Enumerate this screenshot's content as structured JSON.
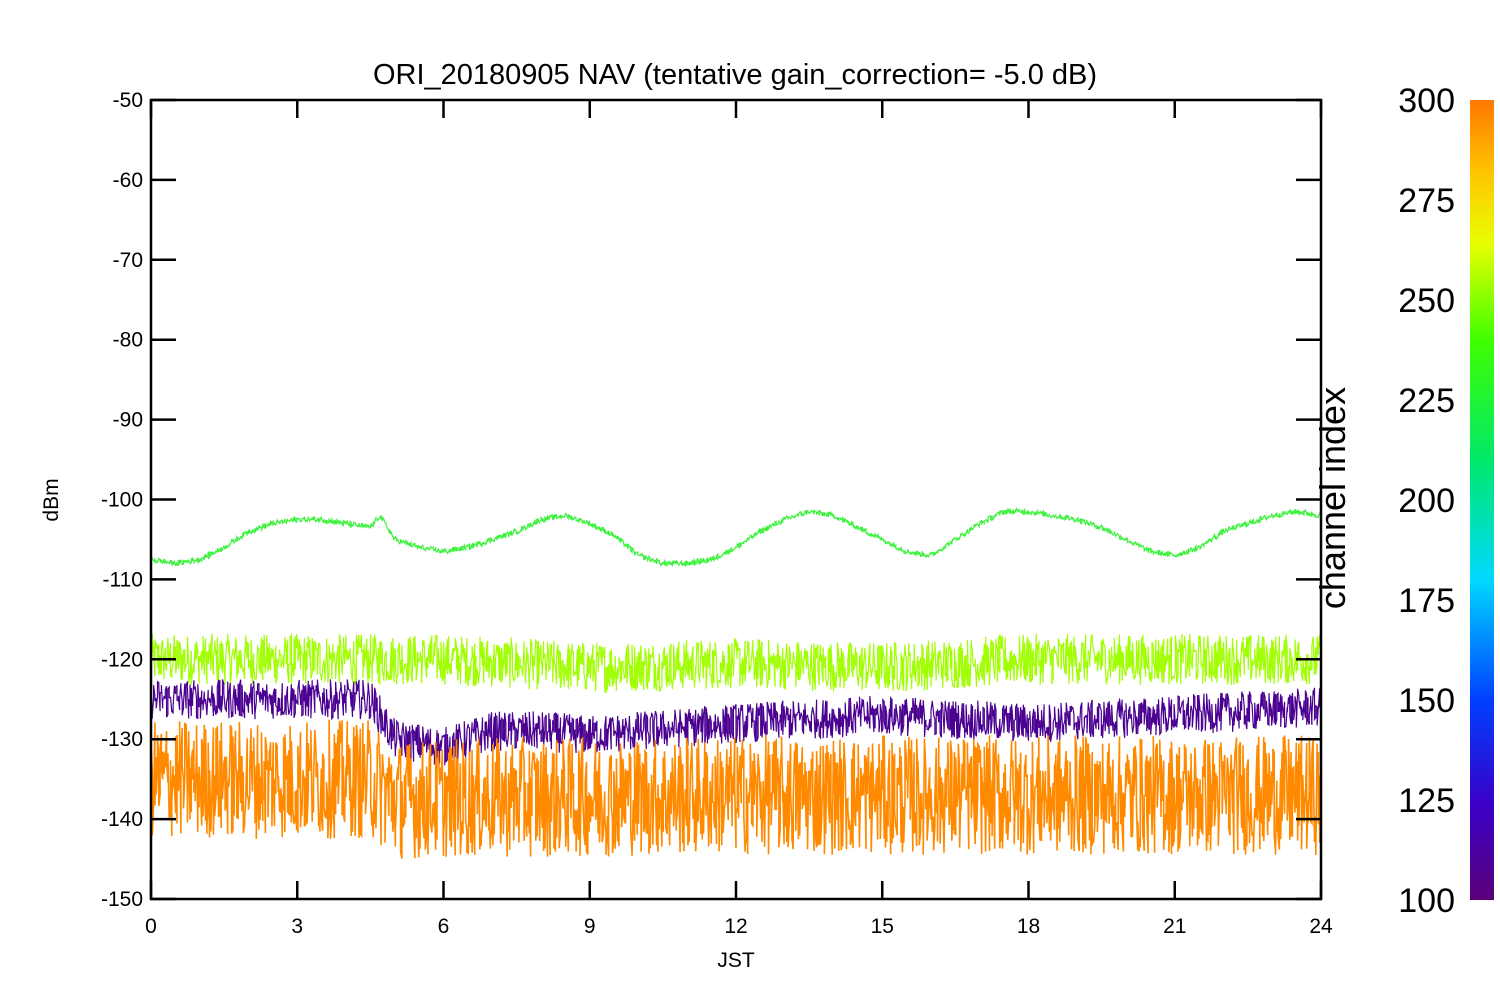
{
  "chart_data": {
    "type": "line",
    "title": "ORI_20180905 NAV (tentative gain_correction= -5.0 dB)",
    "xlabel": "JST",
    "ylabel": "dBm",
    "xlim": [
      0,
      24
    ],
    "ylim": [
      -150,
      -50
    ],
    "x_ticks": [
      "0",
      "3",
      "6",
      "9",
      "12",
      "15",
      "18",
      "21",
      "24"
    ],
    "y_ticks": [
      "-50",
      "-60",
      "-70",
      "-80",
      "-90",
      "-100",
      "-110",
      "-120",
      "-130",
      "-140",
      "-150"
    ],
    "grid": false,
    "colorbar": {
      "label": "channel index",
      "range": [
        100,
        300
      ],
      "ticks": [
        "300",
        "275",
        "250",
        "225",
        "200",
        "175",
        "150",
        "125",
        "100"
      ],
      "colormap": [
        "#5a0078",
        "#3a00c8",
        "#0040ff",
        "#00d8ff",
        "#00e86a",
        "#40ff00",
        "#e8ff00",
        "#ffc400",
        "#ff7800"
      ]
    },
    "series": [
      {
        "channel": 245,
        "color": "#3cf23c",
        "points": [
          [
            0,
            -107.5
          ],
          [
            0.5,
            -108
          ],
          [
            1,
            -107.5
          ],
          [
            1.5,
            -106
          ],
          [
            2,
            -104
          ],
          [
            2.5,
            -103
          ],
          [
            3,
            -102.5
          ],
          [
            3.5,
            -102.5
          ],
          [
            4,
            -103
          ],
          [
            4.5,
            -103.5
          ],
          [
            4.7,
            -102
          ],
          [
            5,
            -105
          ],
          [
            5.5,
            -106
          ],
          [
            6,
            -106.5
          ],
          [
            6.5,
            -106
          ],
          [
            7,
            -105
          ],
          [
            7.5,
            -104
          ],
          [
            8,
            -102.5
          ],
          [
            8.5,
            -102
          ],
          [
            9,
            -103
          ],
          [
            9.5,
            -104.5
          ],
          [
            10,
            -107
          ],
          [
            10.5,
            -108
          ],
          [
            11,
            -108
          ],
          [
            11.5,
            -107.5
          ],
          [
            12,
            -106
          ],
          [
            12.5,
            -104
          ],
          [
            13,
            -102.5
          ],
          [
            13.5,
            -101.5
          ],
          [
            14,
            -102
          ],
          [
            14.5,
            -103.5
          ],
          [
            15,
            -105
          ],
          [
            15.5,
            -106.5
          ],
          [
            16,
            -107
          ],
          [
            16.5,
            -105
          ],
          [
            17,
            -103
          ],
          [
            17.5,
            -101.5
          ],
          [
            18,
            -101.5
          ],
          [
            18.5,
            -102
          ],
          [
            19,
            -102.5
          ],
          [
            19.5,
            -103.5
          ],
          [
            20,
            -105
          ],
          [
            20.5,
            -106.5
          ],
          [
            21,
            -107
          ],
          [
            21.5,
            -106
          ],
          [
            22,
            -104
          ],
          [
            22.5,
            -103
          ],
          [
            23,
            -102
          ],
          [
            23.5,
            -101.5
          ],
          [
            24,
            -102
          ]
        ]
      },
      {
        "channel": 260,
        "color": "#a0ff00",
        "points": [
          [
            0,
            -120
          ],
          [
            3,
            -120
          ],
          [
            6,
            -120
          ],
          [
            9,
            -121
          ],
          [
            12,
            -120.5
          ],
          [
            15,
            -121
          ],
          [
            18,
            -120
          ],
          [
            21,
            -120
          ],
          [
            24,
            -120
          ]
        ]
      },
      {
        "channel": 110,
        "color": "#4a0090",
        "points": [
          [
            0,
            -125
          ],
          [
            4.5,
            -125
          ],
          [
            5,
            -130
          ],
          [
            6,
            -131
          ],
          [
            7,
            -129
          ],
          [
            8,
            -129
          ],
          [
            9,
            -129.5
          ],
          [
            12,
            -128
          ],
          [
            15,
            -127
          ],
          [
            18,
            -128
          ],
          [
            21,
            -127
          ],
          [
            24,
            -126
          ]
        ]
      },
      {
        "channel": 290,
        "color": "#ff8a00",
        "points": [
          [
            0,
            -135
          ],
          [
            4.5,
            -135
          ],
          [
            5,
            -137.5
          ],
          [
            12,
            -137
          ],
          [
            18,
            -137
          ],
          [
            24,
            -137
          ]
        ]
      }
    ]
  }
}
